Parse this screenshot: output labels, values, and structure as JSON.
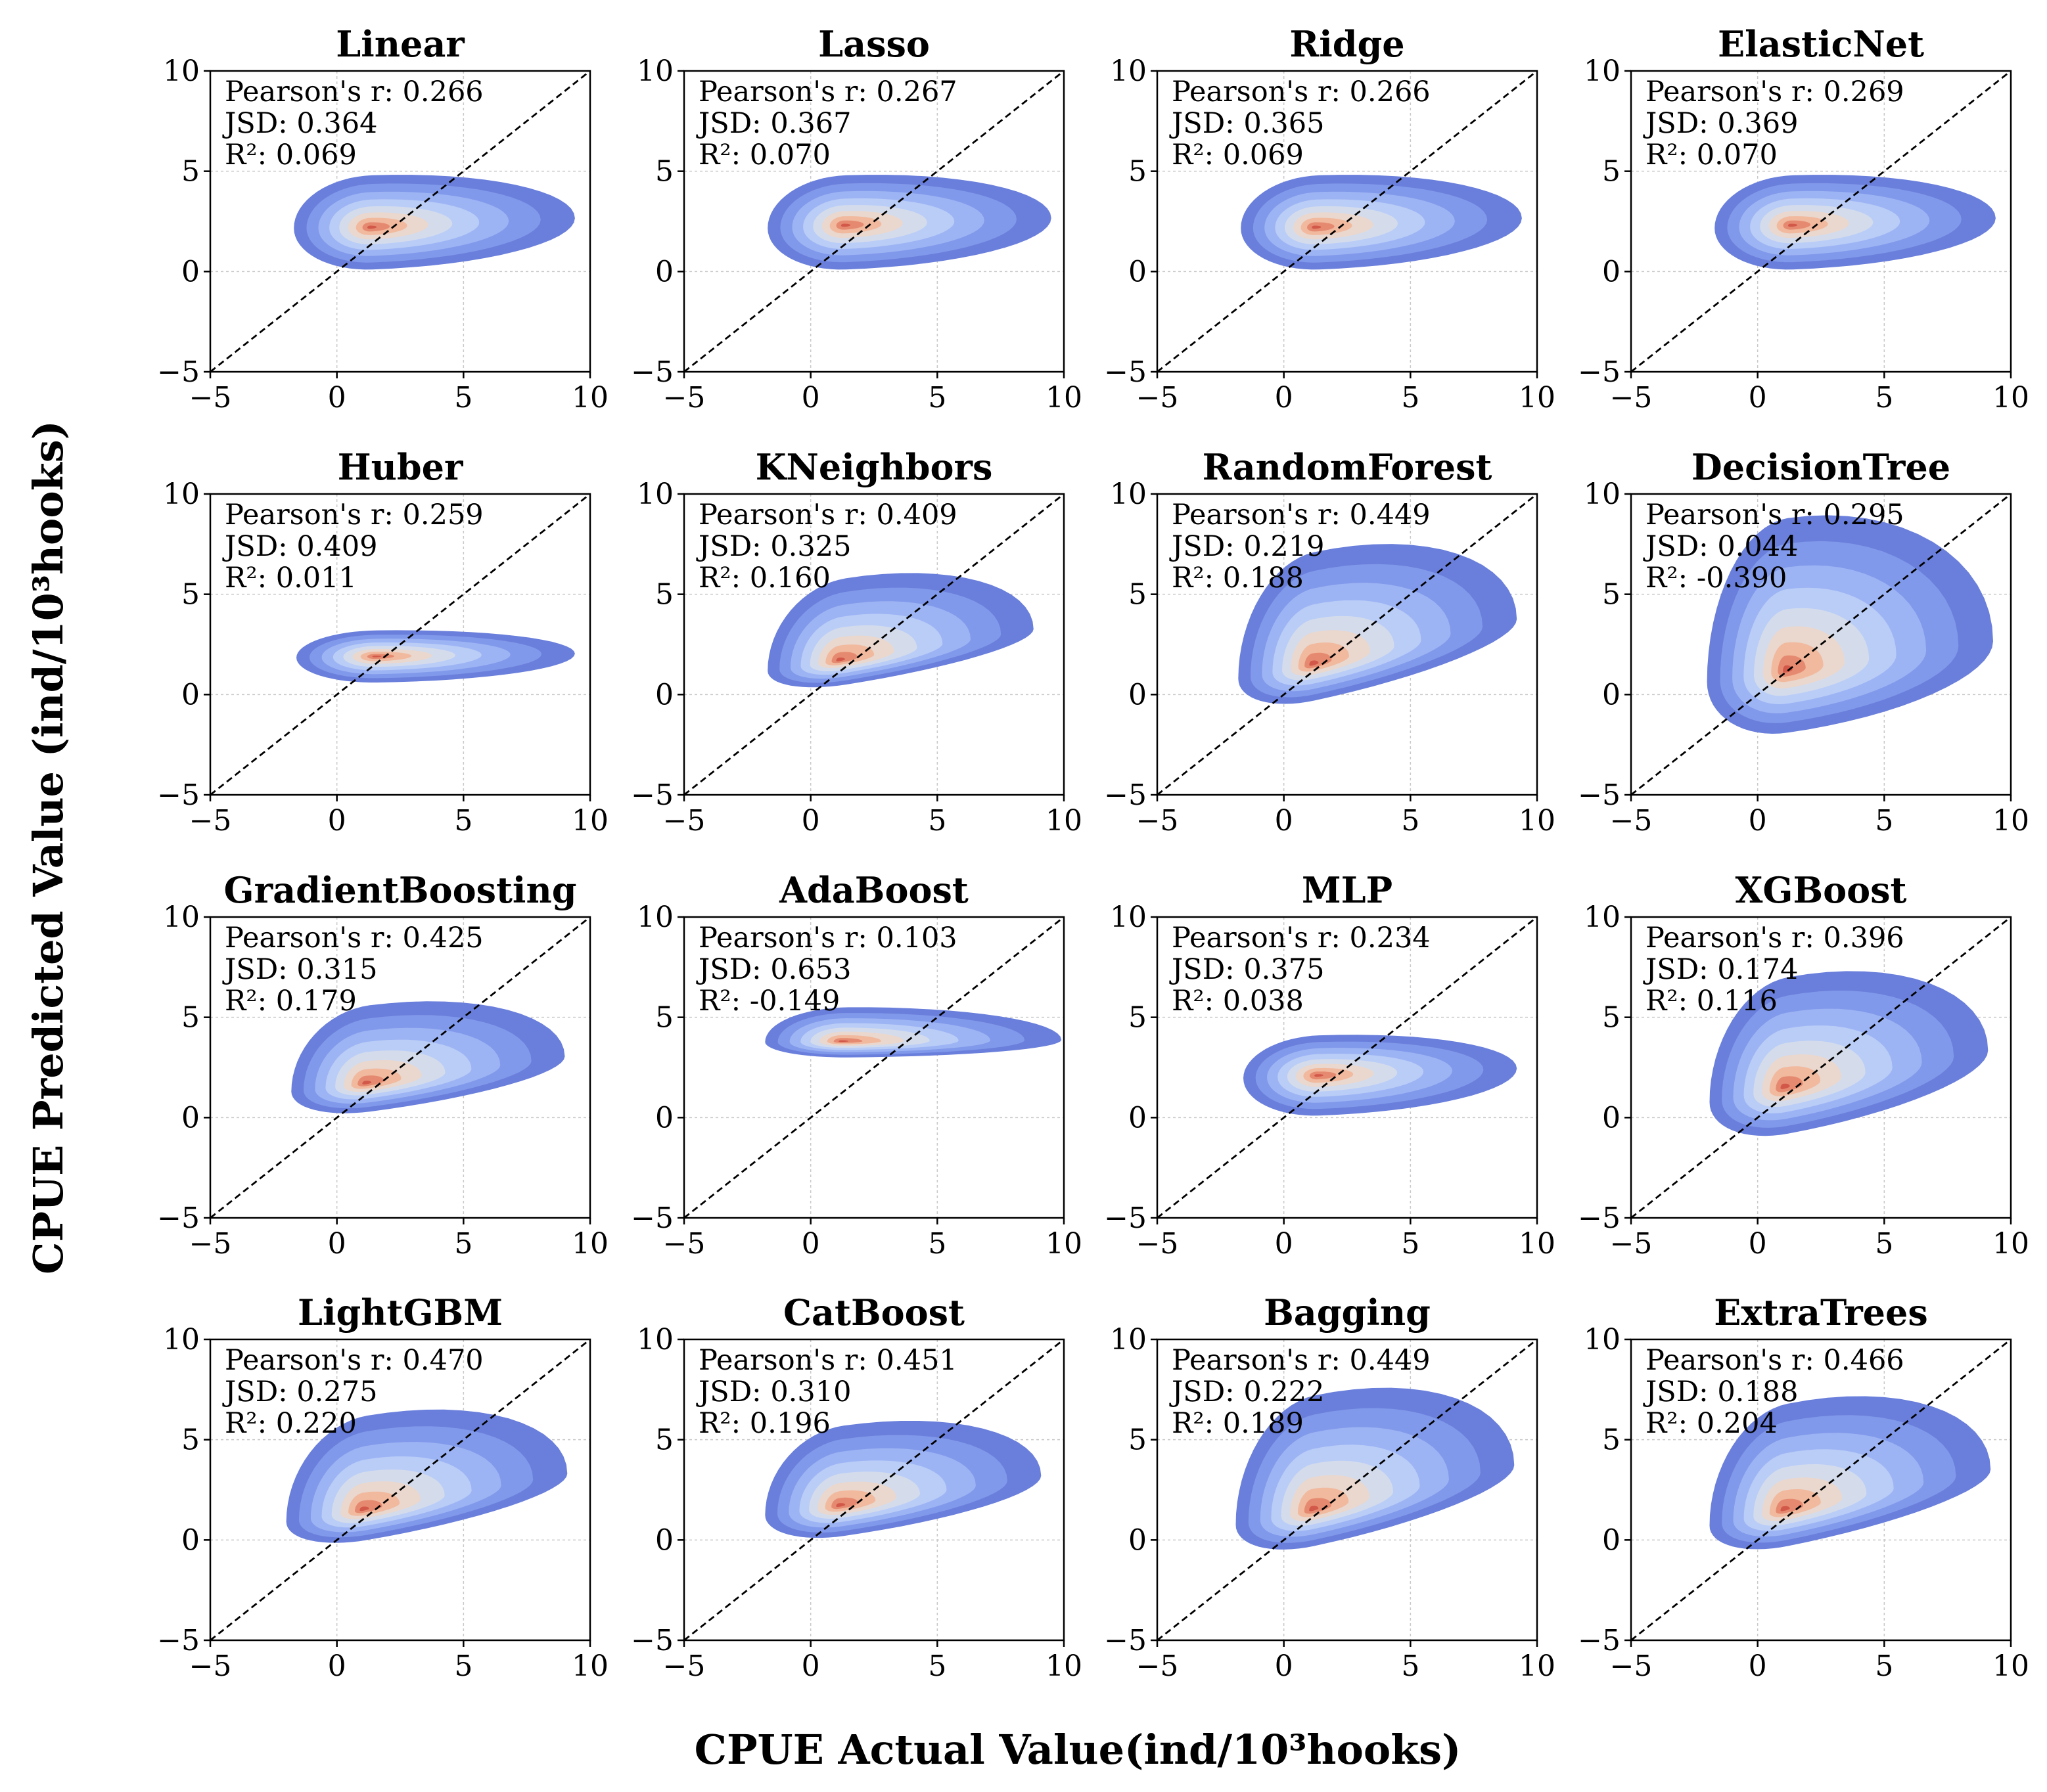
{
  "figure": {
    "xlabel": "CPUE Actual Value(ind/10³hooks)",
    "ylabel": "CPUE Predicted Value (ind/10³hooks)"
  },
  "chart_data": {
    "type": "kde-contour",
    "layout": "4x4 grid",
    "xlim": [
      -5,
      10
    ],
    "ylim": [
      -5,
      10
    ],
    "xticks": [
      -5,
      0,
      5,
      10
    ],
    "yticks": [
      -5,
      0,
      5,
      10
    ],
    "xtick_labels": [
      "−5",
      "0",
      "5",
      "10"
    ],
    "ytick_labels": [
      "−5",
      "0",
      "5",
      "10"
    ],
    "grid": true,
    "reference_line": "y = x (dashed black)",
    "colormap": [
      "#6a7fdb",
      "#8199ea",
      "#9db4f4",
      "#bacdf7",
      "#d4dcec",
      "#ead7cd",
      "#f1b99e",
      "#e58a70",
      "#d2584a"
    ],
    "stat_labels": {
      "r": "Pearson's r: ",
      "jsd": "JSD: ",
      "r2": "R²: "
    },
    "panels": [
      {
        "title": "Linear",
        "r": "0.266",
        "jsd": "0.364",
        "r2": "0.069",
        "center": [
          1.4,
          2.3
        ],
        "peak": [
          1.3,
          2.2
        ],
        "xspan": [
          -1.7,
          9.4
        ],
        "yspan": [
          0.1,
          4.8
        ],
        "tilt": 0.05
      },
      {
        "title": "Lasso",
        "r": "0.267",
        "jsd": "0.367",
        "r2": "0.070",
        "center": [
          1.4,
          2.3
        ],
        "peak": [
          1.3,
          2.3
        ],
        "xspan": [
          -1.7,
          9.5
        ],
        "yspan": [
          0.1,
          4.8
        ],
        "tilt": 0.05
      },
      {
        "title": "Ridge",
        "r": "0.266",
        "jsd": "0.365",
        "r2": "0.069",
        "center": [
          1.4,
          2.3
        ],
        "peak": [
          1.2,
          2.2
        ],
        "xspan": [
          -1.7,
          9.4
        ],
        "yspan": [
          0.1,
          4.8
        ],
        "tilt": 0.05
      },
      {
        "title": "ElasticNet",
        "r": "0.269",
        "jsd": "0.369",
        "r2": "0.070",
        "center": [
          1.4,
          2.3
        ],
        "peak": [
          1.3,
          2.3
        ],
        "xspan": [
          -1.7,
          9.4
        ],
        "yspan": [
          0.1,
          4.8
        ],
        "tilt": 0.05
      },
      {
        "title": "Huber",
        "r": "0.259",
        "jsd": "0.409",
        "r2": "0.011",
        "center": [
          1.6,
          1.9
        ],
        "peak": [
          1.5,
          1.9
        ],
        "xspan": [
          -1.6,
          9.4
        ],
        "yspan": [
          0.6,
          3.2
        ],
        "tilt": 0.02
      },
      {
        "title": "KNeighbors",
        "r": "0.409",
        "jsd": "0.325",
        "r2": "0.160",
        "center": [
          1.4,
          1.8
        ],
        "peak": [
          1.1,
          1.7
        ],
        "xspan": [
          -1.7,
          8.8
        ],
        "yspan": [
          0.5,
          5.8
        ],
        "tilt": 0.22
      },
      {
        "title": "RandomForest",
        "r": "0.449",
        "jsd": "0.219",
        "r2": "0.188",
        "center": [
          1.2,
          1.6
        ],
        "peak": [
          1.1,
          1.5
        ],
        "xspan": [
          -1.8,
          9.2
        ],
        "yspan": [
          -0.3,
          7.1
        ],
        "tilt": 0.3
      },
      {
        "title": "DecisionTree",
        "r": "0.295",
        "jsd": "0.044",
        "r2": "-0.390",
        "center": [
          1.2,
          1.2
        ],
        "peak": [
          1.1,
          1.2
        ],
        "xspan": [
          -2.0,
          9.3
        ],
        "yspan": [
          -1.9,
          8.8
        ],
        "tilt": 0.2
      },
      {
        "title": "GradientBoosting",
        "r": "0.425",
        "jsd": "0.315",
        "r2": "0.179",
        "center": [
          1.3,
          1.8
        ],
        "peak": [
          1.1,
          1.7
        ],
        "xspan": [
          -1.8,
          9.0
        ],
        "yspan": [
          0.3,
          5.6
        ],
        "tilt": 0.18
      },
      {
        "title": "AdaBoost",
        "r": "0.103",
        "jsd": "0.653",
        "r2": "-0.149",
        "center": [
          1.5,
          3.8
        ],
        "peak": [
          1.2,
          3.8
        ],
        "xspan": [
          -1.8,
          9.9
        ],
        "yspan": [
          3.0,
          5.5
        ],
        "tilt": 0.01
      },
      {
        "title": "MLP",
        "r": "0.234",
        "jsd": "0.375",
        "r2": "0.038",
        "center": [
          1.4,
          2.1
        ],
        "peak": [
          1.3,
          2.1
        ],
        "xspan": [
          -1.6,
          9.2
        ],
        "yspan": [
          0.1,
          4.1
        ],
        "tilt": 0.05
      },
      {
        "title": "XGBoost",
        "r": "0.396",
        "jsd": "0.174",
        "r2": "0.116",
        "center": [
          1.2,
          1.5
        ],
        "peak": [
          1.0,
          1.5
        ],
        "xspan": [
          -1.9,
          9.1
        ],
        "yspan": [
          -0.8,
          7.0
        ],
        "tilt": 0.26
      },
      {
        "title": "LightGBM",
        "r": "0.470",
        "jsd": "0.275",
        "r2": "0.220",
        "center": [
          1.2,
          1.6
        ],
        "peak": [
          1.0,
          1.5
        ],
        "xspan": [
          -2.0,
          9.1
        ],
        "yspan": [
          0.0,
          6.2
        ],
        "tilt": 0.24
      },
      {
        "title": "CatBoost",
        "r": "0.451",
        "jsd": "0.310",
        "r2": "0.196",
        "center": [
          1.3,
          1.8
        ],
        "peak": [
          1.1,
          1.7
        ],
        "xspan": [
          -1.8,
          9.1
        ],
        "yspan": [
          0.2,
          5.7
        ],
        "tilt": 0.2
      },
      {
        "title": "Bagging",
        "r": "0.449",
        "jsd": "0.222",
        "r2": "0.189",
        "center": [
          1.2,
          1.6
        ],
        "peak": [
          1.1,
          1.5
        ],
        "xspan": [
          -1.9,
          9.1
        ],
        "yspan": [
          -0.3,
          7.2
        ],
        "tilt": 0.3
      },
      {
        "title": "ExtraTrees",
        "r": "0.466",
        "jsd": "0.188",
        "r2": "0.204",
        "center": [
          1.2,
          1.5
        ],
        "peak": [
          1.0,
          1.5
        ],
        "xspan": [
          -1.9,
          9.2
        ],
        "yspan": [
          -0.3,
          6.8
        ],
        "tilt": 0.28
      }
    ]
  }
}
